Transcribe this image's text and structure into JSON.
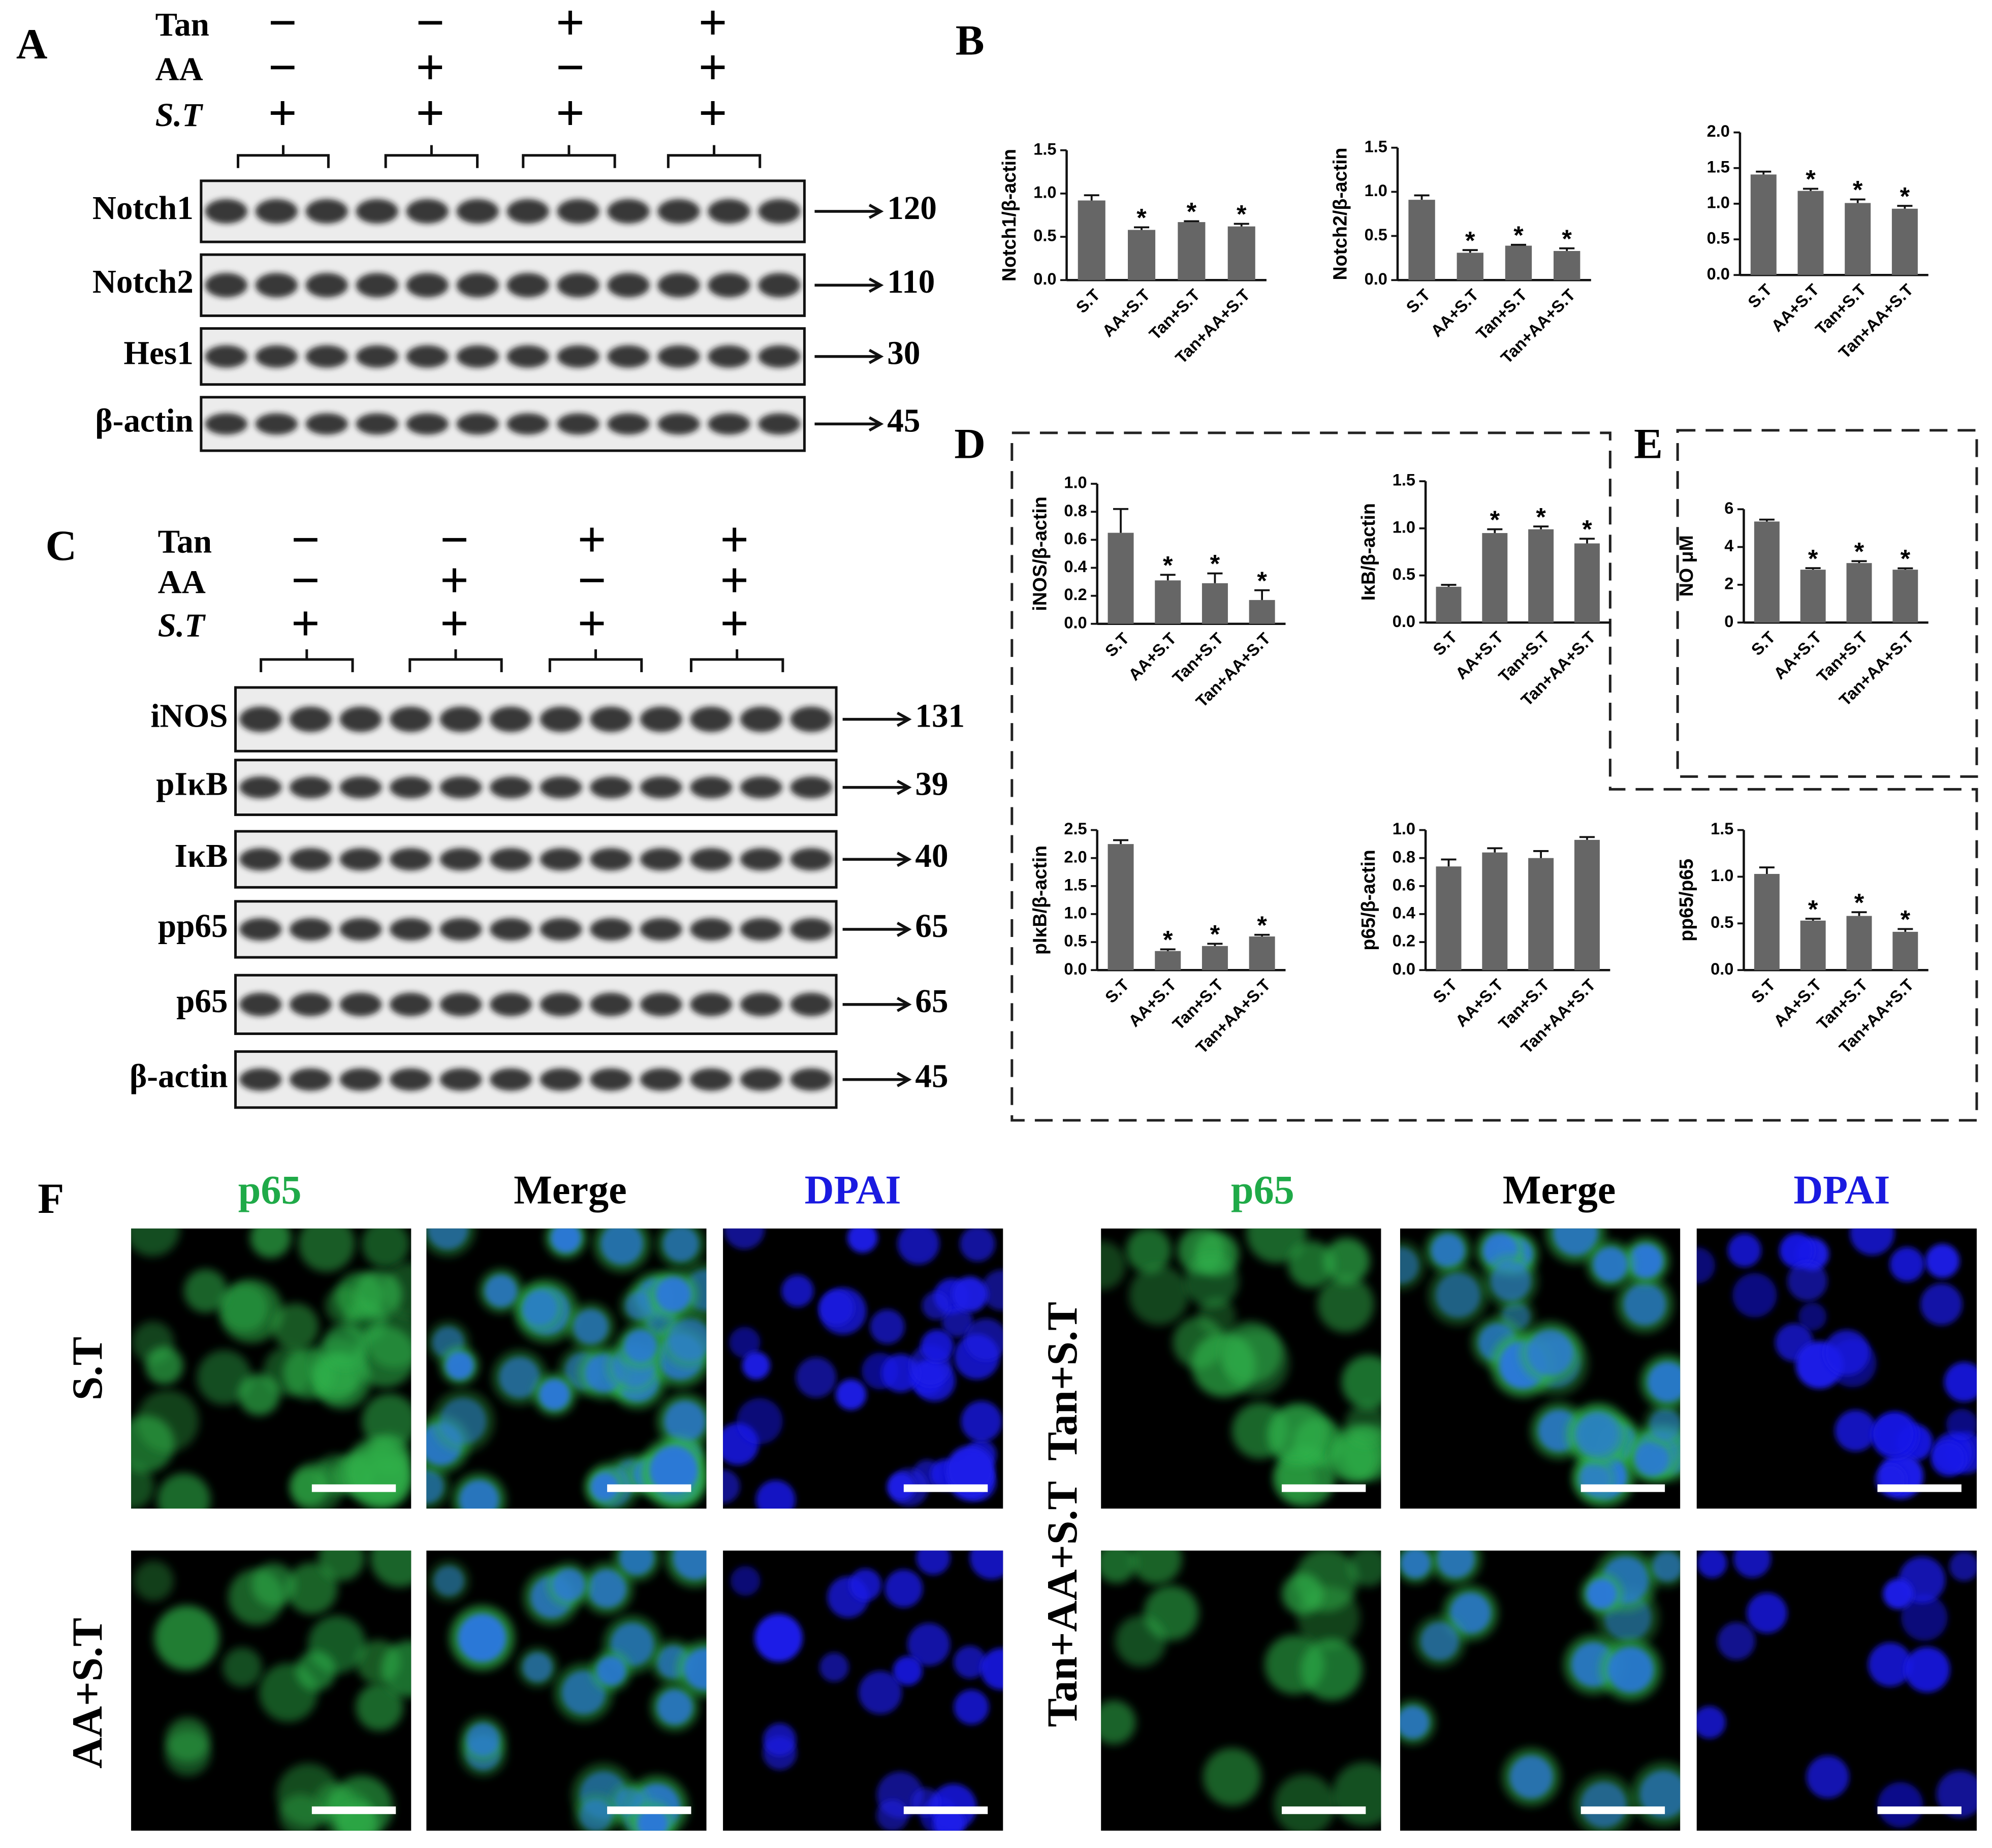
{
  "panel_labels": [
    "A",
    "B",
    "C",
    "D",
    "E",
    "F"
  ],
  "blot_a": {
    "treatments": [
      {
        "name": "Tan",
        "signs": [
          "−",
          "−",
          "+",
          "+"
        ]
      },
      {
        "name": "AA",
        "signs": [
          "−",
          "+",
          "−",
          "+"
        ]
      },
      {
        "name": "S.T",
        "signs": [
          "+",
          "+",
          "+",
          "+"
        ]
      }
    ],
    "proteins": [
      {
        "name": "Notch1",
        "kda": 120
      },
      {
        "name": "Notch2",
        "kda": 110
      },
      {
        "name": "Hes1",
        "kda": 30
      },
      {
        "name": "β-actin",
        "kda": 45
      }
    ]
  },
  "blot_c": {
    "treatments": [
      {
        "name": "Tan",
        "signs": [
          "−",
          "−",
          "+",
          "+"
        ]
      },
      {
        "name": "AA",
        "signs": [
          "−",
          "+",
          "−",
          "+"
        ]
      },
      {
        "name": "S.T",
        "signs": [
          "+",
          "+",
          "+",
          "+"
        ]
      }
    ],
    "proteins": [
      {
        "name": "iNOS",
        "kda": 131
      },
      {
        "name": "pIκB",
        "kda": 39
      },
      {
        "name": "IκB",
        "kda": 40
      },
      {
        "name": "pp65",
        "kda": 65
      },
      {
        "name": "p65",
        "kda": 65
      },
      {
        "name": "β-actin",
        "kda": 45
      }
    ]
  },
  "chart_data": [
    {
      "type": "bar",
      "ylabel": "Notch1/β-actin",
      "categories": [
        "S.T",
        "AA+S.T",
        "Tan+S.T",
        "Tan+AA+S.T"
      ],
      "values": [
        0.92,
        0.58,
        0.67,
        0.62
      ],
      "errors": [
        0.06,
        0.03,
        0.01,
        0.03
      ],
      "significance": [
        null,
        "*",
        "*",
        "*"
      ],
      "color": "#666666",
      "ylim": [
        0,
        1.5
      ],
      "yticks": [
        {
          "value": 0,
          "label": "0.0"
        },
        0.5,
        {
          "value": 1,
          "label": "1.0"
        },
        1.5
      ]
    },
    {
      "type": "bar",
      "ylabel": "Notch2/β-actin",
      "categories": [
        "S.T",
        "AA+S.T",
        "Tan+S.T",
        "Tan+AA+S.T"
      ],
      "values": [
        0.91,
        0.31,
        0.39,
        0.33
      ],
      "errors": [
        0.05,
        0.03,
        0.01,
        0.03
      ],
      "significance": [
        null,
        "*",
        "*",
        "*"
      ],
      "color": "#666666",
      "ylim": [
        0,
        1.5
      ],
      "yticks": [
        {
          "value": 0,
          "label": "0.0"
        },
        0.5,
        {
          "value": 1,
          "label": "1.0"
        },
        1.5
      ]
    },
    {
      "type": "bar",
      "categories": [
        "S.T",
        "AA+S.T",
        "Tan+S.T",
        "Tan+AA+S.T"
      ],
      "values": [
        1.41,
        1.18,
        1.01,
        0.93
      ],
      "errors": [
        0.04,
        0.03,
        0.05,
        0.04
      ],
      "significance": [
        null,
        "*",
        "*",
        "*"
      ],
      "color": "#666666",
      "ylim": [
        0,
        2
      ],
      "yticks": [
        {
          "value": 0,
          "label": "0.0"
        },
        0.5,
        {
          "value": 1,
          "label": "1.0"
        },
        1.5,
        {
          "value": 2,
          "label": "2.0"
        }
      ]
    },
    {
      "type": "bar",
      "ylabel": "iNOS/β-actin",
      "categories": [
        "S.T",
        "AA+S.T",
        "Tan+S.T",
        "Tan+AA+S.T"
      ],
      "values": [
        0.65,
        0.31,
        0.29,
        0.17
      ],
      "errors": [
        0.17,
        0.04,
        0.07,
        0.07
      ],
      "significance": [
        null,
        "*",
        "*",
        "*"
      ],
      "color": "#666666",
      "ylim": [
        0,
        1
      ],
      "yticks": [
        {
          "value": 0,
          "label": "0.0"
        },
        0.2,
        0.4,
        0.6,
        0.8,
        {
          "value": 1,
          "label": "1.0"
        }
      ]
    },
    {
      "type": "bar",
      "ylabel": "IκB/β-actin",
      "categories": [
        "S.T",
        "AA+S.T",
        "Tan+S.T",
        "Tan+AA+S.T"
      ],
      "values": [
        0.38,
        0.95,
        0.99,
        0.84
      ],
      "errors": [
        0.02,
        0.04,
        0.03,
        0.05
      ],
      "significance": [
        null,
        "*",
        "*",
        "*"
      ],
      "color": "#666666",
      "ylim": [
        0,
        1.5
      ],
      "yticks": [
        {
          "value": 0,
          "label": "0.0"
        },
        0.5,
        {
          "value": 1,
          "label": "1.0"
        },
        1.5
      ]
    },
    {
      "type": "bar",
      "ylabel": "NO μM",
      "categories": [
        "S.T",
        "AA+S.T",
        "Tan+S.T",
        "Tan+AA+S.T"
      ],
      "values": [
        5.35,
        2.8,
        3.15,
        2.8
      ],
      "errors": [
        0.1,
        0.08,
        0.1,
        0.07
      ],
      "significance": [
        null,
        "*",
        "*",
        "*"
      ],
      "color": "#666666",
      "ylim": [
        0,
        6
      ],
      "yticks": [
        0,
        2,
        4,
        6
      ]
    },
    {
      "type": "bar",
      "ylabel": "pIκB/β-actin",
      "categories": [
        "S.T",
        "AA+S.T",
        "Tan+S.T",
        "Tan+AA+S.T"
      ],
      "values": [
        2.25,
        0.34,
        0.43,
        0.6
      ],
      "errors": [
        0.07,
        0.03,
        0.04,
        0.03
      ],
      "significance": [
        null,
        "*",
        "*",
        "*"
      ],
      "color": "#666666",
      "ylim": [
        0,
        2.5
      ],
      "yticks": [
        {
          "value": 0,
          "label": "0.0"
        },
        0.5,
        {
          "value": 1,
          "label": "1.0"
        },
        1.5,
        {
          "value": 2,
          "label": "2.0"
        },
        2.5
      ]
    },
    {
      "type": "bar",
      "ylabel": "p65/β-actin",
      "categories": [
        "S.T",
        "AA+S.T",
        "Tan+S.T",
        "Tan+AA+S.T"
      ],
      "values": [
        0.74,
        0.84,
        0.8,
        0.93
      ],
      "errors": [
        0.05,
        0.03,
        0.05,
        0.02
      ],
      "color": "#666666",
      "ylim": [
        0,
        1
      ],
      "yticks": [
        {
          "value": 0,
          "label": "0.0"
        },
        0.2,
        0.4,
        0.6,
        0.8,
        {
          "value": 1,
          "label": "1.0"
        }
      ]
    },
    {
      "type": "bar",
      "ylabel": "pp65/p65",
      "categories": [
        "S.T",
        "AA+S.T",
        "Tan+S.T",
        "Tan+AA+S.T"
      ],
      "values": [
        1.03,
        0.53,
        0.58,
        0.41
      ],
      "errors": [
        0.07,
        0.02,
        0.04,
        0.03
      ],
      "significance": [
        null,
        "*",
        "*",
        "*"
      ],
      "color": "#666666",
      "ylim": [
        0,
        1.5
      ],
      "yticks": [
        {
          "value": 0,
          "label": "0.0"
        },
        0.5,
        {
          "value": 1,
          "label": "1.0"
        },
        1.5
      ]
    }
  ],
  "micrographs": {
    "columns": [
      "p65",
      "Merge",
      "DPAI"
    ],
    "rows": [
      "S.T",
      "AA+S.T",
      "Tan+S.T",
      "Tan+AA+S.T"
    ]
  }
}
